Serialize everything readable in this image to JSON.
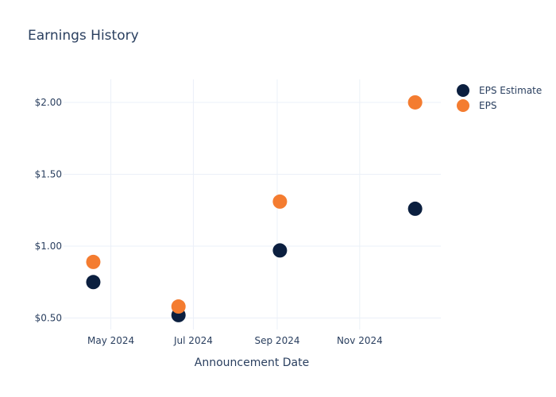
{
  "chart_data": {
    "type": "scatter",
    "title": "Earnings History",
    "xlabel": "Announcement Date",
    "ylabel": "",
    "x_ticks": [
      "May 2024",
      "Jul 2024",
      "Sep 2024",
      "Nov 2024"
    ],
    "x_tick_dates": [
      "2024-05-01",
      "2024-07-01",
      "2024-09-01",
      "2024-11-01"
    ],
    "xlim": [
      "2024-03-27",
      "2024-12-31"
    ],
    "y_ticks": [
      "$0.50",
      "$1.00",
      "$1.50",
      "$2.00"
    ],
    "y_tick_values": [
      0.5,
      1.0,
      1.5,
      2.0
    ],
    "ylim": [
      0.42,
      2.16
    ],
    "grid": true,
    "legend_position": "top-right",
    "series": [
      {
        "name": "EPS Estimate",
        "color": "#0b1f3f",
        "points": [
          {
            "x": "2024-04-18",
            "y": 0.75
          },
          {
            "x": "2024-06-20",
            "y": 0.52
          },
          {
            "x": "2024-09-03",
            "y": 0.97
          },
          {
            "x": "2024-12-12",
            "y": 1.26
          }
        ]
      },
      {
        "name": "EPS",
        "color": "#f47c30",
        "points": [
          {
            "x": "2024-04-18",
            "y": 0.89
          },
          {
            "x": "2024-06-20",
            "y": 0.58
          },
          {
            "x": "2024-09-03",
            "y": 1.31
          },
          {
            "x": "2024-12-12",
            "y": 2.0
          }
        ]
      }
    ]
  }
}
